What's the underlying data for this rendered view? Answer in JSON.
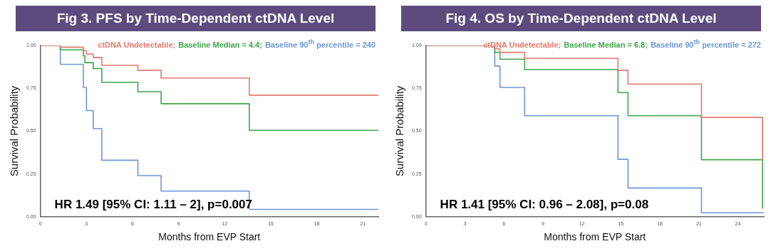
{
  "chart_data": [
    {
      "type": "step",
      "title": "Fig 3. PFS by Time-Dependent ctDNA Level",
      "xlabel": "Months from EVP Start",
      "ylabel": "Survival Probability",
      "legend": "top right",
      "annotations": [
        "HR 1.49 [95% CI: 1.11 – 2], p=0.007"
      ],
      "xlim": [
        0,
        22
      ],
      "xticks": [
        0,
        3,
        6,
        9,
        12,
        15,
        18,
        21
      ],
      "ylim": [
        0,
        1
      ],
      "yticks": [
        {
          "value": 0,
          "label": "0.00"
        },
        {
          "value": 0.25,
          "label": "0.25"
        },
        {
          "value": 0.5,
          "label": "0.50"
        },
        {
          "value": 0.75,
          "label": "0.75"
        },
        {
          "value": 1,
          "label": "1.00"
        }
      ],
      "series": [
        {
          "name": "ctDNA Undetectable;",
          "color": "#e07b6e",
          "x": [
            0,
            1.3,
            2.8,
            3.0,
            3.44,
            4.0,
            6.35,
            7.86,
            13.6,
            22
          ],
          "values": [
            1,
            0.99,
            0.97,
            0.95,
            0.93,
            0.885,
            0.855,
            0.81,
            0.71,
            0.71
          ]
        },
        {
          "name": "Baseline Median = 4.4;",
          "color": "#3fa64a",
          "x": [
            0,
            1.3,
            2.8,
            2.9,
            3.44,
            4.0,
            6.35,
            7.86,
            13.6,
            22
          ],
          "values": [
            1,
            0.975,
            0.94,
            0.9,
            0.865,
            0.785,
            0.73,
            0.66,
            0.505,
            0.505
          ]
        },
        {
          "name": "Baseline 90$^{th}$ percentile = 240",
          "color": "#6d96d8",
          "x": [
            0,
            1.3,
            2.8,
            3.0,
            3.44,
            4.0,
            6.35,
            7.86,
            13.6,
            22
          ],
          "values": [
            1,
            0.89,
            0.755,
            0.62,
            0.515,
            0.33,
            0.24,
            0.15,
            0.043,
            0.043
          ]
        }
      ]
    },
    {
      "type": "step",
      "title": "Fig 4. OS by Time-Dependent ctDNA Level",
      "xlabel": "Months from EVP Start",
      "ylabel": "Survival Probability",
      "legend": "top right",
      "annotations": [
        "HR 1.41 [95% CI: 0.96 – 2.08], p=0.08"
      ],
      "xlim": [
        0,
        26
      ],
      "xticks": [
        0,
        3,
        6,
        9,
        12,
        15,
        18,
        21,
        24
      ],
      "ylim": [
        0,
        1
      ],
      "yticks": [
        {
          "value": 0,
          "label": "0.00"
        },
        {
          "value": 0.25,
          "label": "0.25"
        },
        {
          "value": 0.5,
          "label": "0.50"
        },
        {
          "value": 0.75,
          "label": "0.75"
        },
        {
          "value": 1,
          "label": "1.00"
        }
      ],
      "series": [
        {
          "name": "ctDNA Undetectable;",
          "color": "#e07b6e",
          "x": [
            0,
            5.3,
            5.7,
            7.6,
            14.78,
            15.55,
            21.2,
            25.9
          ],
          "values": [
            1,
            0.98,
            0.96,
            0.925,
            0.855,
            0.775,
            0.58,
            0.33
          ]
        },
        {
          "name": "Baseline Median = 6.8;",
          "color": "#3fa64a",
          "x": [
            0,
            5.3,
            5.7,
            7.6,
            14.78,
            15.55,
            21.2,
            25.9
          ],
          "values": [
            1,
            0.96,
            0.92,
            0.86,
            0.725,
            0.59,
            0.333,
            0.047
          ]
        },
        {
          "name": "Baseline 90$^{th}$ percentile = 272",
          "color": "#6d96d8",
          "x": [
            0,
            5.3,
            5.7,
            7.6,
            14.78,
            15.55,
            21.2,
            26
          ],
          "values": [
            1,
            0.88,
            0.755,
            0.59,
            0.335,
            0.168,
            0.023,
            0.023
          ]
        }
      ]
    }
  ]
}
